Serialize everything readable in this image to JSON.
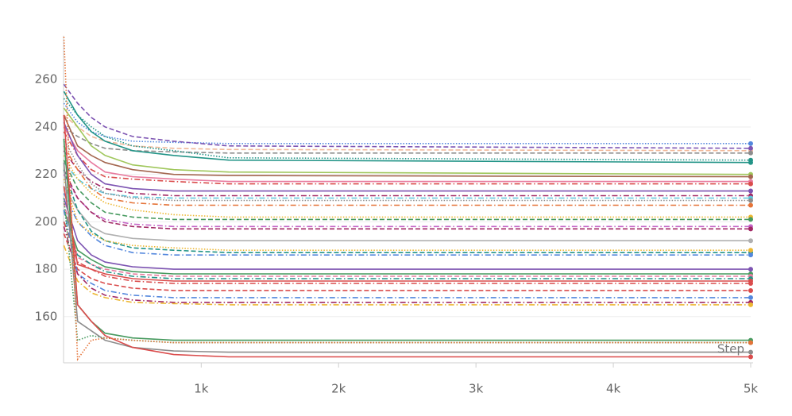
{
  "chart_data": {
    "type": "line",
    "x_label": "Step",
    "x": [
      0,
      100,
      200,
      300,
      500,
      800,
      1200,
      5000
    ],
    "xlim": [
      0,
      5000
    ],
    "xticks": [
      {
        "value": 1000,
        "label": "1k"
      },
      {
        "value": 2000,
        "label": "2k"
      },
      {
        "value": 3000,
        "label": "3k"
      },
      {
        "value": 4000,
        "label": "4k"
      },
      {
        "value": 5000,
        "label": "5k"
      }
    ],
    "ylim": [
      140.5,
      278.5
    ],
    "yticks": [
      160,
      180,
      200,
      220,
      240,
      260
    ],
    "grid": true,
    "series": [
      {
        "color": "#5387dd",
        "dash": "dotted",
        "values": [
          250,
          242,
          238,
          236,
          234,
          233.5,
          233,
          233
        ]
      },
      {
        "color": "#f0b899",
        "dash": "dashed",
        "values": [
          245,
          240,
          236,
          234,
          232,
          231,
          230.5,
          230
        ]
      },
      {
        "color": "#7d54b2",
        "dash": "dashed",
        "values": [
          258,
          250,
          244,
          240,
          236,
          234,
          232,
          231
        ]
      },
      {
        "color": "#8d8d8d",
        "dash": "dashed",
        "values": [
          240,
          236,
          233,
          231,
          230,
          229.5,
          229,
          229
        ]
      },
      {
        "color": "#229487",
        "dash": "dotted",
        "values": [
          252,
          245,
          240,
          236,
          232,
          230,
          227,
          226
        ]
      },
      {
        "color": "#229487",
        "dash": "solid",
        "values": [
          255,
          245,
          238,
          234,
          230,
          228,
          226,
          225
        ]
      },
      {
        "color": "#a0c75c",
        "dash": "solid",
        "values": [
          248,
          240,
          232,
          228,
          224,
          222,
          221,
          220
        ]
      },
      {
        "color": "#a46750",
        "dash": "solid",
        "values": [
          245,
          232,
          228,
          225,
          222,
          220,
          219.5,
          219
        ]
      },
      {
        "color": "#e87b9f",
        "dash": "solid",
        "values": [
          240,
          230,
          225,
          221,
          219,
          218,
          217,
          217
        ]
      },
      {
        "color": "#da4c4c",
        "dash": "dashdot",
        "values": [
          238,
          228,
          222,
          219,
          218,
          217,
          216,
          216
        ]
      },
      {
        "color": "#7d54b2",
        "dash": "solid",
        "values": [
          242,
          228,
          220,
          216,
          214,
          213,
          213,
          213
        ]
      },
      {
        "color": "#a12864",
        "dash": "dashdot",
        "values": [
          230,
          222,
          217,
          214,
          212,
          211,
          211,
          211
        ]
      },
      {
        "color": "#5bc5db",
        "dash": "dashdot",
        "values": [
          225,
          218,
          214,
          212,
          210.5,
          210,
          210,
          210
        ]
      },
      {
        "color": "#8d8d8d",
        "dash": "dotted",
        "values": [
          235,
          224,
          216,
          212,
          210,
          209,
          209,
          209
        ]
      },
      {
        "color": "#e57439",
        "dash": "dashdot",
        "values": [
          232,
          222,
          214,
          210,
          208,
          207,
          207,
          207
        ]
      },
      {
        "color": "#edb732",
        "dash": "dotted",
        "values": [
          228,
          218,
          212,
          208,
          205,
          203,
          202,
          202
        ]
      },
      {
        "color": "#479a5f",
        "dash": "dashed",
        "values": [
          226,
          214,
          208,
          204,
          202,
          201,
          201,
          201
        ]
      },
      {
        "color": "#c565c7",
        "dash": "dashdot",
        "values": [
          220,
          210,
          204,
          201,
          199,
          198,
          198,
          198
        ]
      },
      {
        "color": "#a12864",
        "dash": "dashed",
        "values": [
          222,
          210,
          204,
          200,
          198,
          197,
          197,
          197
        ]
      },
      {
        "color": "#b0b0b0",
        "dash": "solid",
        "values": [
          215,
          205,
          198,
          195,
          193,
          192,
          192,
          192
        ]
      },
      {
        "color": "#229487",
        "dash": "dashed",
        "values": [
          222,
          205,
          196,
          192,
          189,
          188,
          187,
          187
        ]
      },
      {
        "color": "#5387dd",
        "dash": "dashdot",
        "values": [
          212,
          200,
          194,
          190,
          187,
          186,
          186,
          186
        ]
      },
      {
        "color": "#edb732",
        "dash": "dotted",
        "values": [
          218,
          200,
          195,
          192,
          190,
          189,
          188,
          188
        ]
      },
      {
        "color": "#7d54b2",
        "dash": "solid",
        "values": [
          210,
          192,
          186,
          183,
          181,
          180,
          180,
          180
        ]
      },
      {
        "color": "#479a5f",
        "dash": "solid",
        "values": [
          205,
          188,
          184,
          181,
          179,
          178,
          178,
          178
        ]
      },
      {
        "color": "#e87b9f",
        "dash": "dashed",
        "values": [
          208,
          185,
          182,
          180,
          178,
          177,
          177,
          177
        ]
      },
      {
        "color": "#229487",
        "dash": "dashdot",
        "values": [
          200,
          186,
          182,
          179,
          177,
          176,
          176,
          176
        ]
      },
      {
        "color": "#da4c4c",
        "dash": "solid",
        "values": [
          215,
          182,
          180,
          178,
          176,
          175,
          175,
          175
        ]
      },
      {
        "color": "#da4c4c",
        "dash": "dashdot",
        "values": [
          200,
          183,
          180,
          177,
          175,
          174,
          174,
          174
        ]
      },
      {
        "color": "#da4c4c",
        "dash": "dashed",
        "values": [
          195,
          180,
          176,
          174,
          172,
          171,
          171,
          171
        ]
      },
      {
        "color": "#5387dd",
        "dash": "dashdot",
        "values": [
          205,
          178,
          174,
          171,
          169,
          168,
          168,
          168
        ]
      },
      {
        "color": "#a12864",
        "dash": "dashdot",
        "values": [
          198,
          178,
          172,
          169,
          167,
          166,
          166,
          166
        ]
      },
      {
        "color": "#edb732",
        "dash": "dashdot",
        "values": [
          190,
          175,
          170,
          168,
          166,
          165.5,
          165,
          165
        ]
      },
      {
        "color": "#479a5f",
        "dash": "solid",
        "values": [
          235,
          165,
          158,
          153,
          151,
          150,
          150,
          150
        ]
      },
      {
        "color": "#479a5f",
        "dash": "dotted",
        "values": [
          210,
          150,
          152,
          151,
          150,
          149,
          149,
          149
        ]
      },
      {
        "color": "#8d8d8d",
        "dash": "solid",
        "values": [
          225,
          158,
          154,
          150,
          147,
          145.5,
          145,
          145
        ]
      },
      {
        "color": "#da4c4c",
        "dash": "solid",
        "values": [
          245,
          165,
          158,
          152,
          147,
          144,
          143,
          143
        ]
      },
      {
        "color": "#e57439",
        "dash": "dotted",
        "values": [
          278,
          142,
          150,
          151,
          150,
          149,
          149,
          149
        ]
      }
    ]
  }
}
